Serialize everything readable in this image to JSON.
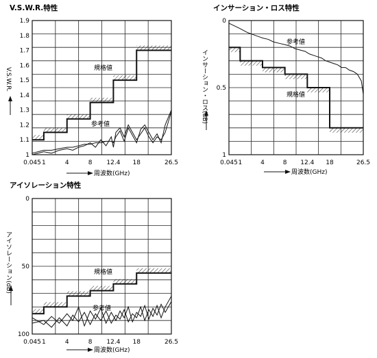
{
  "chart_data": [
    {
      "id": "vswr",
      "type": "line",
      "title": "V.S.W.R.特性",
      "ylabel": "V.S.W.R.",
      "xlabel": "周波数(GHz)",
      "ylim": [
        1.0,
        1.9
      ],
      "yticks": [
        "1.9",
        "1.8",
        "1.7",
        "1.6",
        "1.5",
        "1.4",
        "1.3",
        "1.2",
        "1.1",
        "1"
      ],
      "xticks": [
        "0.045",
        "1",
        "4",
        "8",
        "12.4",
        "18",
        "26.5"
      ],
      "annotations": {
        "spec": "規格値",
        "ref": "参考値"
      },
      "series": [
        {
          "kind": "spec",
          "x": [
            0.045,
            1,
            1,
            4,
            4,
            8,
            8,
            12.4,
            12.4,
            18,
            18,
            26.5
          ],
          "y": [
            1.1,
            1.1,
            1.15,
            1.15,
            1.24,
            1.24,
            1.35,
            1.35,
            1.5,
            1.5,
            1.7,
            1.7
          ]
        },
        {
          "kind": "ref",
          "x": [
            0.045,
            1,
            2,
            3,
            4,
            5,
            6,
            7,
            8,
            9,
            10,
            11,
            12,
            12.4,
            13,
            14,
            15,
            16,
            17,
            18,
            19,
            20,
            21,
            22,
            23,
            24,
            25,
            26.5
          ],
          "y": [
            1.0,
            1.02,
            1.01,
            1.03,
            1.04,
            1.03,
            1.05,
            1.06,
            1.08,
            1.05,
            1.1,
            1.06,
            1.12,
            1.05,
            1.15,
            1.18,
            1.12,
            1.2,
            1.15,
            1.1,
            1.14,
            1.18,
            1.12,
            1.08,
            1.12,
            1.1,
            1.15,
            1.29
          ]
        },
        {
          "kind": "ref",
          "x": [
            0.045,
            1,
            2,
            3,
            4,
            5,
            6,
            7,
            8,
            9,
            10,
            11,
            12,
            12.4,
            13,
            14,
            15,
            16,
            17,
            18,
            19,
            20,
            21,
            22,
            23,
            24,
            25,
            26.5
          ],
          "y": [
            1.01,
            1.03,
            1.03,
            1.04,
            1.05,
            1.05,
            1.06,
            1.07,
            1.07,
            1.08,
            1.08,
            1.09,
            1.09,
            1.08,
            1.12,
            1.16,
            1.09,
            1.18,
            1.13,
            1.08,
            1.17,
            1.2,
            1.15,
            1.1,
            1.14,
            1.08,
            1.2,
            1.3
          ]
        }
      ]
    },
    {
      "id": "insertion",
      "type": "line",
      "title": "インサーション・ロス特性",
      "ylabel": "インサーション・ロス(dB)",
      "xlabel": "周波数(GHz)",
      "ylim": [
        0,
        1
      ],
      "yticks": [
        "0",
        "0.5",
        "1"
      ],
      "xticks": [
        "0.045",
        "1",
        "4",
        "8",
        "12.4",
        "18",
        "26.5"
      ],
      "annotations": {
        "spec": "規格値",
        "ref": "参考値"
      },
      "series": [
        {
          "kind": "spec",
          "x": [
            0.045,
            1,
            1,
            4,
            4,
            8,
            8,
            12.4,
            12.4,
            18,
            18,
            26.5
          ],
          "y": [
            0.2,
            0.2,
            0.3,
            0.3,
            0.35,
            0.35,
            0.4,
            0.4,
            0.5,
            0.5,
            0.8,
            0.8
          ]
        },
        {
          "kind": "ref",
          "x": [
            0.045,
            1,
            2,
            3,
            4,
            5,
            6,
            7,
            8,
            9,
            10,
            11,
            12,
            12.4,
            13,
            14,
            15,
            16,
            17,
            18,
            19,
            20,
            21,
            22,
            23,
            24,
            25,
            26,
            26.5
          ],
          "y": [
            0.02,
            0.06,
            0.09,
            0.11,
            0.13,
            0.14,
            0.16,
            0.17,
            0.18,
            0.19,
            0.21,
            0.22,
            0.23,
            0.24,
            0.25,
            0.26,
            0.27,
            0.28,
            0.3,
            0.31,
            0.32,
            0.33,
            0.35,
            0.35,
            0.37,
            0.38,
            0.4,
            0.45,
            0.55
          ]
        }
      ]
    },
    {
      "id": "isolation",
      "type": "line",
      "title": "アイソレーション特性",
      "ylabel": "アイソレーション(dB)",
      "xlabel": "周波数(GHz)",
      "ylim": [
        0,
        100
      ],
      "yticks": [
        "0",
        "50",
        "100"
      ],
      "xticks": [
        "0.045",
        "1",
        "4",
        "8",
        "12.4",
        "18",
        "26.5"
      ],
      "annotations": {
        "spec": "規格値",
        "ref": "参考値"
      },
      "series": [
        {
          "kind": "spec",
          "x": [
            0.045,
            1,
            1,
            4,
            4,
            8,
            8,
            12.4,
            12.4,
            18,
            18,
            26.5
          ],
          "y": [
            85,
            85,
            80,
            80,
            72,
            72,
            68,
            68,
            63,
            63,
            55,
            55
          ]
        },
        {
          "kind": "ref",
          "x": [
            0.045,
            1,
            2,
            3,
            4,
            5,
            6,
            7,
            8,
            9,
            10,
            11,
            12,
            13,
            14,
            15,
            16,
            17,
            18,
            19,
            20,
            21,
            22,
            23,
            24,
            25,
            26.5
          ],
          "y": [
            92,
            90,
            95,
            88,
            94,
            86,
            91,
            84,
            93,
            85,
            90,
            83,
            92,
            86,
            89,
            82,
            91,
            85,
            88,
            80,
            90,
            82,
            87,
            79,
            88,
            80,
            72
          ]
        },
        {
          "kind": "ref",
          "x": [
            0.045,
            1,
            2,
            3,
            4,
            5,
            6,
            7,
            8,
            9,
            10,
            11,
            12,
            13,
            14,
            15,
            16,
            17,
            18,
            19,
            20,
            21,
            22,
            23,
            24,
            25,
            26.5
          ],
          "y": [
            88,
            93,
            87,
            92,
            85,
            90,
            80,
            94,
            83,
            89,
            81,
            92,
            84,
            90,
            83,
            88,
            80,
            91,
            84,
            87,
            79,
            89,
            81,
            86,
            78,
            84,
            76
          ]
        }
      ]
    }
  ]
}
